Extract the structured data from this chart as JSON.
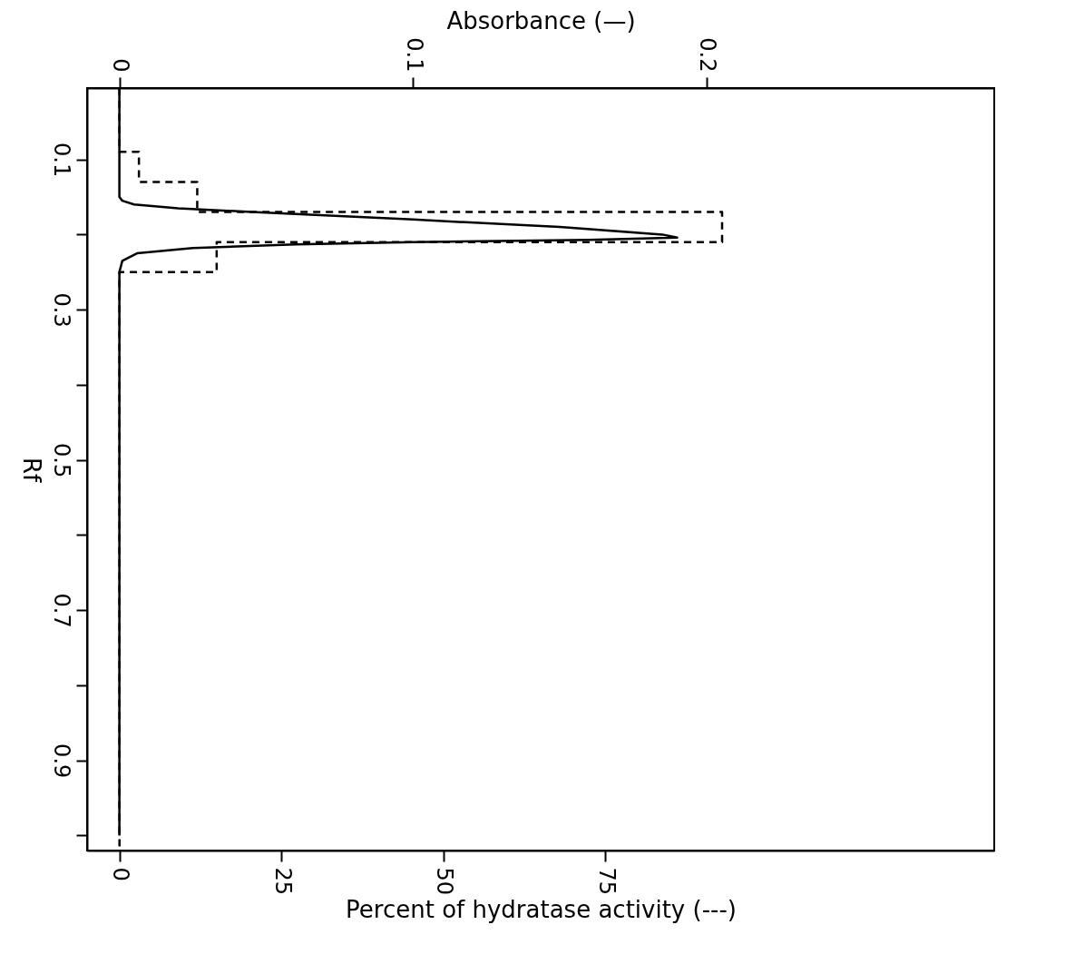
{
  "chart_data": {
    "type": "line",
    "orientation": "horizontal",
    "xlabel": "Percent of hydratase activity (---)",
    "x2label": "Absorbance (—)",
    "ylabel": "Rf",
    "xlim": [
      -5,
      135
    ],
    "xticks": [
      0,
      25,
      50,
      75
    ],
    "x2lim": [
      -0.011,
      0.298
    ],
    "x2ticks": [
      0,
      0.1,
      0.2
    ],
    "ylim": [
      1.02,
      0.005
    ],
    "yticks": [
      0.1,
      {
        "value": 0.2,
        "label": null
      },
      0.3,
      {
        "value": 0.4,
        "label": null
      },
      0.5,
      {
        "value": 0.6,
        "label": null
      },
      0.7,
      {
        "value": 0.8,
        "label": null
      },
      0.9,
      {
        "value": 1.0,
        "label": null
      }
    ],
    "grid": false,
    "legend": false,
    "marker": "none",
    "series": [
      {
        "type": "step",
        "color": "#000000",
        "line_style": "dashed",
        "x": [
          0.005,
          0.09,
          0.13,
          0.17,
          0.21,
          0.25,
          1.02
        ],
        "values": [
          0,
          3,
          12,
          93,
          15,
          0,
          0
        ]
      },
      {
        "type": "line",
        "axis": "x2",
        "color": "#000000",
        "line_style": "solid",
        "x": [
          0.005,
          0.15,
          0.155,
          0.16,
          0.165,
          0.17,
          0.18,
          0.19,
          0.2,
          0.204,
          0.207,
          0.21,
          0.213,
          0.218,
          0.225,
          0.235,
          0.25,
          1.0
        ],
        "values": [
          0,
          0,
          0.001,
          0.005,
          0.02,
          0.045,
          0.1,
          0.15,
          0.185,
          0.19,
          0.16,
          0.1,
          0.06,
          0.025,
          0.006,
          0.001,
          0,
          0
        ]
      }
    ]
  }
}
